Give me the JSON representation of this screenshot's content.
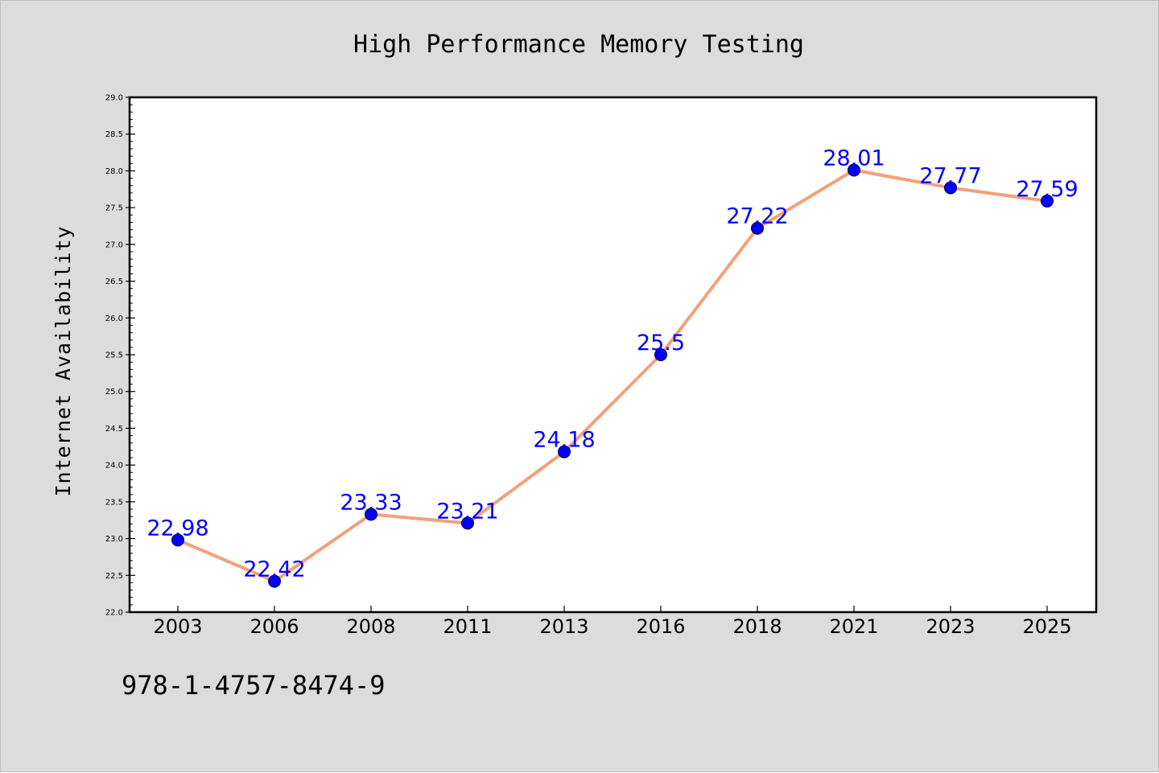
{
  "colors": {
    "background": "#dcdcdc",
    "plot_area": "#ffffff",
    "line": "#f4a07a",
    "marker": "#0000ff",
    "data_label": "#0000ff"
  },
  "isbn_text": "978-1-4757-8474-9",
  "chart_data": {
    "type": "line",
    "title": "High Performance Memory Testing",
    "xlabel": "",
    "ylabel": "Internet Availability",
    "categories": [
      "2003",
      "2006",
      "2008",
      "2011",
      "2013",
      "2016",
      "2018",
      "2021",
      "2023",
      "2025"
    ],
    "series": [
      {
        "values": [
          22.98,
          22.42,
          23.33,
          23.21,
          24.18,
          25.5,
          27.22,
          28.01,
          27.77,
          27.59
        ],
        "labels": [
          "22.98",
          "22.42",
          "23.33",
          "23.21",
          "24.18",
          "25.5",
          "27.22",
          "28.01",
          "27.77",
          "27.59"
        ]
      }
    ],
    "ylim": [
      22.0,
      29.0
    ],
    "yticks": [
      "22.0",
      "22.5",
      "23.0",
      "23.5",
      "24.0",
      "24.5",
      "25.0",
      "25.5",
      "26.0",
      "26.5",
      "27.0",
      "27.5",
      "28.0",
      "28.5",
      "29.0"
    ],
    "grid": false,
    "legend": "none"
  }
}
